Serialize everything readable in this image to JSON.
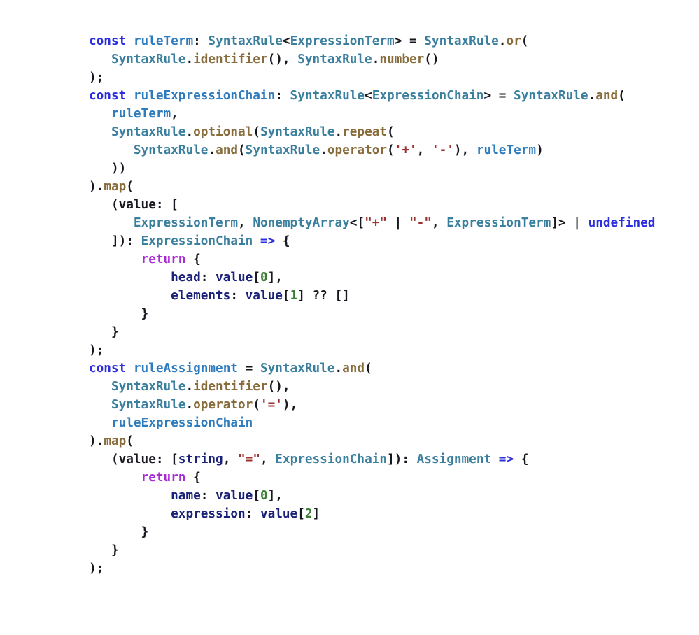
{
  "editor": {
    "background": "#ffffff",
    "language": "typescript",
    "palette": {
      "k": "#2C2FE0",
      "t": "#3B7F9E",
      "v": "#2E7CBE",
      "m": "#886C3C",
      "s": "#9E3131",
      "n": "#3B7D36",
      "d": "#1A2178",
      "r": "#A82BD3",
      "p": "#16161E"
    },
    "palette_legend": {
      "k": "keyword (const, undefined, =>)",
      "t": "type/class name",
      "v": "top-level variable",
      "m": "method name",
      "s": "string literal",
      "n": "number literal",
      "d": "property/local identifier",
      "r": "control keyword (return)",
      "p": "punctuation/default"
    },
    "lines": [
      [
        [
          "k",
          "const "
        ],
        [
          "v",
          "ruleTerm"
        ],
        [
          "p",
          ": "
        ],
        [
          "t",
          "SyntaxRule"
        ],
        [
          "p",
          "<"
        ],
        [
          "t",
          "ExpressionTerm"
        ],
        [
          "p",
          "> = "
        ],
        [
          "t",
          "SyntaxRule"
        ],
        [
          "p",
          "."
        ],
        [
          "m",
          "or"
        ],
        [
          "p",
          "("
        ]
      ],
      [
        [
          "p",
          "   "
        ],
        [
          "t",
          "SyntaxRule"
        ],
        [
          "p",
          "."
        ],
        [
          "m",
          "identifier"
        ],
        [
          "p",
          "(), "
        ],
        [
          "t",
          "SyntaxRule"
        ],
        [
          "p",
          "."
        ],
        [
          "m",
          "number"
        ],
        [
          "p",
          "()"
        ]
      ],
      [
        [
          "p",
          ");"
        ]
      ],
      [
        [
          "k",
          "const "
        ],
        [
          "v",
          "ruleExpressionChain"
        ],
        [
          "p",
          ": "
        ],
        [
          "t",
          "SyntaxRule"
        ],
        [
          "p",
          "<"
        ],
        [
          "t",
          "ExpressionChain"
        ],
        [
          "p",
          "> = "
        ],
        [
          "t",
          "SyntaxRule"
        ],
        [
          "p",
          "."
        ],
        [
          "m",
          "and"
        ],
        [
          "p",
          "("
        ]
      ],
      [
        [
          "p",
          "   "
        ],
        [
          "v",
          "ruleTerm"
        ],
        [
          "p",
          ","
        ]
      ],
      [
        [
          "p",
          "   "
        ],
        [
          "t",
          "SyntaxRule"
        ],
        [
          "p",
          "."
        ],
        [
          "m",
          "optional"
        ],
        [
          "p",
          "("
        ],
        [
          "t",
          "SyntaxRule"
        ],
        [
          "p",
          "."
        ],
        [
          "m",
          "repeat"
        ],
        [
          "p",
          "("
        ]
      ],
      [
        [
          "p",
          "      "
        ],
        [
          "t",
          "SyntaxRule"
        ],
        [
          "p",
          "."
        ],
        [
          "m",
          "and"
        ],
        [
          "p",
          "("
        ],
        [
          "t",
          "SyntaxRule"
        ],
        [
          "p",
          "."
        ],
        [
          "m",
          "operator"
        ],
        [
          "p",
          "("
        ],
        [
          "s",
          "'+'"
        ],
        [
          "p",
          ", "
        ],
        [
          "s",
          "'-'"
        ],
        [
          "p",
          "), "
        ],
        [
          "v",
          "ruleTerm"
        ],
        [
          "p",
          ")"
        ]
      ],
      [
        [
          "p",
          "   ))"
        ]
      ],
      [
        [
          "p",
          ")."
        ],
        [
          "m",
          "map"
        ],
        [
          "p",
          "("
        ]
      ],
      [
        [
          "p",
          "   (value: ["
        ]
      ],
      [
        [
          "p",
          "      "
        ],
        [
          "t",
          "ExpressionTerm"
        ],
        [
          "p",
          ", "
        ],
        [
          "t",
          "NonemptyArray"
        ],
        [
          "p",
          "<["
        ],
        [
          "s",
          "\"+\""
        ],
        [
          "p",
          " | "
        ],
        [
          "s",
          "\"-\""
        ],
        [
          "p",
          ", "
        ],
        [
          "t",
          "ExpressionTerm"
        ],
        [
          "p",
          "]> | "
        ],
        [
          "k",
          "undefined"
        ]
      ],
      [
        [
          "p",
          "   ]): "
        ],
        [
          "t",
          "ExpressionChain"
        ],
        [
          "k",
          " => "
        ],
        [
          "p",
          "{"
        ]
      ],
      [
        [
          "p",
          "       "
        ],
        [
          "r",
          "return"
        ],
        [
          "p",
          " {"
        ]
      ],
      [
        [
          "p",
          "           "
        ],
        [
          "d",
          "head"
        ],
        [
          "p",
          ": "
        ],
        [
          "d",
          "value"
        ],
        [
          "p",
          "["
        ],
        [
          "n",
          "0"
        ],
        [
          "p",
          "],"
        ]
      ],
      [
        [
          "p",
          "           "
        ],
        [
          "d",
          "elements"
        ],
        [
          "p",
          ": "
        ],
        [
          "d",
          "value"
        ],
        [
          "p",
          "["
        ],
        [
          "n",
          "1"
        ],
        [
          "p",
          "] ?? []"
        ]
      ],
      [
        [
          "p",
          "       }"
        ]
      ],
      [
        [
          "p",
          "   }"
        ]
      ],
      [
        [
          "p",
          ");"
        ]
      ],
      [
        [
          "k",
          "const "
        ],
        [
          "v",
          "ruleAssignment"
        ],
        [
          "p",
          " = "
        ],
        [
          "t",
          "SyntaxRule"
        ],
        [
          "p",
          "."
        ],
        [
          "m",
          "and"
        ],
        [
          "p",
          "("
        ]
      ],
      [
        [
          "p",
          "   "
        ],
        [
          "t",
          "SyntaxRule"
        ],
        [
          "p",
          "."
        ],
        [
          "m",
          "identifier"
        ],
        [
          "p",
          "(),"
        ]
      ],
      [
        [
          "p",
          "   "
        ],
        [
          "t",
          "SyntaxRule"
        ],
        [
          "p",
          "."
        ],
        [
          "m",
          "operator"
        ],
        [
          "p",
          "("
        ],
        [
          "s",
          "'='"
        ],
        [
          "p",
          "),"
        ]
      ],
      [
        [
          "p",
          "   "
        ],
        [
          "v",
          "ruleExpressionChain"
        ]
      ],
      [
        [
          "p",
          ")."
        ],
        [
          "m",
          "map"
        ],
        [
          "p",
          "("
        ]
      ],
      [
        [
          "p",
          "   (value: ["
        ],
        [
          "d",
          "string"
        ],
        [
          "p",
          ", "
        ],
        [
          "s",
          "\"=\""
        ],
        [
          "p",
          ", "
        ],
        [
          "t",
          "ExpressionChain"
        ],
        [
          "p",
          "]): "
        ],
        [
          "t",
          "Assignment"
        ],
        [
          "k",
          " => "
        ],
        [
          "p",
          "{"
        ]
      ],
      [
        [
          "p",
          "       "
        ],
        [
          "r",
          "return"
        ],
        [
          "p",
          " {"
        ]
      ],
      [
        [
          "p",
          "           "
        ],
        [
          "d",
          "name"
        ],
        [
          "p",
          ": "
        ],
        [
          "d",
          "value"
        ],
        [
          "p",
          "["
        ],
        [
          "n",
          "0"
        ],
        [
          "p",
          "],"
        ]
      ],
      [
        [
          "p",
          "           "
        ],
        [
          "d",
          "expression"
        ],
        [
          "p",
          ": "
        ],
        [
          "d",
          "value"
        ],
        [
          "p",
          "["
        ],
        [
          "n",
          "2"
        ],
        [
          "p",
          "]"
        ]
      ],
      [
        [
          "p",
          "       }"
        ]
      ],
      [
        [
          "p",
          "   }"
        ]
      ],
      [
        [
          "p",
          ");"
        ]
      ]
    ]
  }
}
